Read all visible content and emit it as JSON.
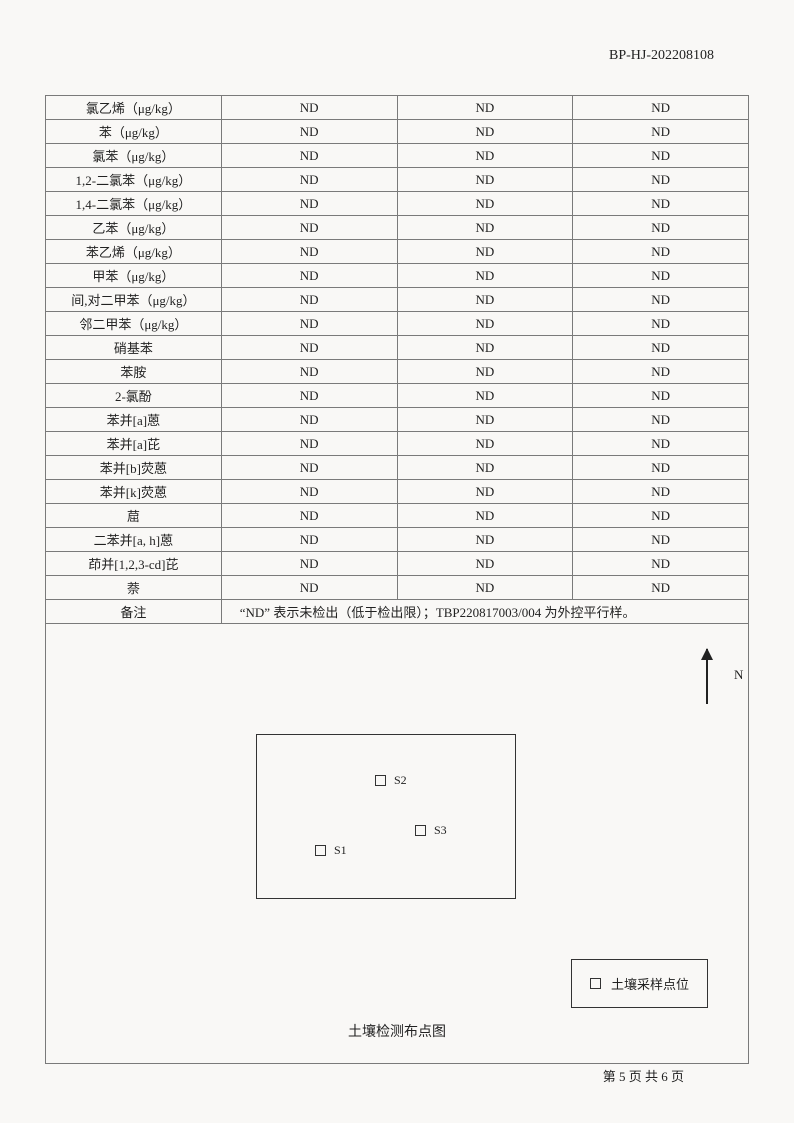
{
  "doc_id": "BP-HJ-202208108",
  "rows": [
    {
      "name": "氯乙烯（μg/kg）",
      "v1": "ND",
      "v2": "ND",
      "v3": "ND"
    },
    {
      "name": "苯（μg/kg）",
      "v1": "ND",
      "v2": "ND",
      "v3": "ND"
    },
    {
      "name": "氯苯（μg/kg）",
      "v1": "ND",
      "v2": "ND",
      "v3": "ND"
    },
    {
      "name": "1,2-二氯苯（μg/kg）",
      "v1": "ND",
      "v2": "ND",
      "v3": "ND"
    },
    {
      "name": "1,4-二氯苯（μg/kg）",
      "v1": "ND",
      "v2": "ND",
      "v3": "ND"
    },
    {
      "name": "乙苯（μg/kg）",
      "v1": "ND",
      "v2": "ND",
      "v3": "ND"
    },
    {
      "name": "苯乙烯（μg/kg）",
      "v1": "ND",
      "v2": "ND",
      "v3": "ND"
    },
    {
      "name": "甲苯（μg/kg）",
      "v1": "ND",
      "v2": "ND",
      "v3": "ND"
    },
    {
      "name": "间,对二甲苯（μg/kg）",
      "v1": "ND",
      "v2": "ND",
      "v3": "ND"
    },
    {
      "name": "邻二甲苯（μg/kg）",
      "v1": "ND",
      "v2": "ND",
      "v3": "ND"
    },
    {
      "name": "硝基苯",
      "v1": "ND",
      "v2": "ND",
      "v3": "ND"
    },
    {
      "name": "苯胺",
      "v1": "ND",
      "v2": "ND",
      "v3": "ND"
    },
    {
      "name": "2-氯酚",
      "v1": "ND",
      "v2": "ND",
      "v3": "ND"
    },
    {
      "name": "苯并[a]蒽",
      "v1": "ND",
      "v2": "ND",
      "v3": "ND"
    },
    {
      "name": "苯并[a]芘",
      "v1": "ND",
      "v2": "ND",
      "v3": "ND"
    },
    {
      "name": "苯并[b]荧蒽",
      "v1": "ND",
      "v2": "ND",
      "v3": "ND"
    },
    {
      "name": "苯并[k]荧蒽",
      "v1": "ND",
      "v2": "ND",
      "v3": "ND"
    },
    {
      "name": "䓛",
      "v1": "ND",
      "v2": "ND",
      "v3": "ND"
    },
    {
      "name": "二苯并[a, h]蒽",
      "v1": "ND",
      "v2": "ND",
      "v3": "ND"
    },
    {
      "name": "茚并[1,2,3-cd]芘",
      "v1": "ND",
      "v2": "ND",
      "v3": "ND"
    },
    {
      "name": "萘",
      "v1": "ND",
      "v2": "ND",
      "v3": "ND"
    }
  ],
  "remark_label": "备注",
  "remark_text": "“ND” 表示未检出（低于检出限）；TBP220817003/004 为外控平行样。",
  "diagram": {
    "north_label": "N",
    "points": {
      "s1": "S1",
      "s2": "S2",
      "s3": "S3"
    },
    "legend": "土壤采样点位",
    "caption": "土壤检测布点图"
  },
  "pager": "第 5 页  共 6 页"
}
